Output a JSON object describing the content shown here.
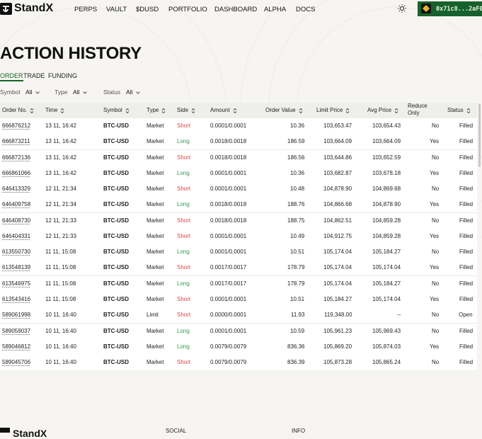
{
  "header": {
    "logo": "StandX",
    "nav": [
      "PERPS",
      "VAULT",
      "$DUSD",
      "PORTFOLIO",
      "DASHBOARD",
      "ALPHA",
      "DOCS"
    ],
    "wallet": "0x71c8...2aF0"
  },
  "page": {
    "title": "ACTION HISTORY",
    "tabs": [
      "ORDER",
      "TRADE",
      "FUNDING"
    ],
    "filters": [
      {
        "label": "Symbol",
        "value": "All"
      },
      {
        "label": "Type",
        "value": "All"
      },
      {
        "label": "Status",
        "value": "All"
      }
    ]
  },
  "table": {
    "columns": [
      "Order No.",
      "Time",
      "Symbol",
      "Type",
      "Side",
      "Amount",
      "Order Value",
      "Limit Price",
      "Avg Price",
      "Reduce Only",
      "Status"
    ],
    "side_colors": {
      "Short": "#e2453c",
      "Long": "#2f9d4e"
    },
    "rows": [
      [
        "666876212",
        "13 11, 16:42",
        "BTC-USD",
        "Market",
        "Short",
        "0.0001/0.0001",
        "10.36",
        "103,653.47",
        "103,654.43",
        "No",
        "Filled"
      ],
      [
        "666873211",
        "13 11, 16:42",
        "BTC-USD",
        "Market",
        "Long",
        "0.0018/0.0018",
        "186.59",
        "103,664.09",
        "103,664.09",
        "Yes",
        "Filled"
      ],
      [
        "666872136",
        "13 11, 16:42",
        "BTC-USD",
        "Market",
        "Short",
        "0.0018/0.0018",
        "186.56",
        "103,644.86",
        "103,652.59",
        "No",
        "Filled"
      ],
      [
        "666861066",
        "13 11, 16:42",
        "BTC-USD",
        "Market",
        "Long",
        "0.0001/0.0001",
        "10.36",
        "103,682.87",
        "103,678.18",
        "Yes",
        "Filled"
      ],
      [
        "646413329",
        "12 11, 21:34",
        "BTC-USD",
        "Market",
        "Short",
        "0.0001/0.0001",
        "10.48",
        "104,878.90",
        "104,869.68",
        "No",
        "Filled"
      ],
      [
        "646409758",
        "12 11, 21:34",
        "BTC-USD",
        "Market",
        "Long",
        "0.0018/0.0018",
        "188.76",
        "104,866.68",
        "104,878.90",
        "Yes",
        "Filled"
      ],
      [
        "646408730",
        "12 11, 21:33",
        "BTC-USD",
        "Market",
        "Short",
        "0.0018/0.0018",
        "188.75",
        "104,862.51",
        "104,859.28",
        "No",
        "Filled"
      ],
      [
        "646404331",
        "12 11, 21:33",
        "BTC-USD",
        "Market",
        "Short",
        "0.0001/0.0001",
        "10.49",
        "104,912.75",
        "104,859.28",
        "Yes",
        "Filled"
      ],
      [
        "613550730",
        "11 11, 15:08",
        "BTC-USD",
        "Market",
        "Long",
        "0.0001/0.0001",
        "10.51",
        "105,174.04",
        "105,184.27",
        "No",
        "Filled"
      ],
      [
        "613548139",
        "11 11, 15:08",
        "BTC-USD",
        "Market",
        "Short",
        "0.0017/0.0017",
        "178.79",
        "105,174.04",
        "105,174.04",
        "Yes",
        "Filled"
      ],
      [
        "613546975",
        "11 11, 15:08",
        "BTC-USD",
        "Market",
        "Long",
        "0.0017/0.0017",
        "178.79",
        "105,174.04",
        "105,184.27",
        "No",
        "Filled"
      ],
      [
        "613543416",
        "11 11, 15:08",
        "BTC-USD",
        "Market",
        "Short",
        "0.0001/0.0001",
        "10.51",
        "105,184.27",
        "105,174.04",
        "Yes",
        "Filled"
      ],
      [
        "589061998",
        "10 11, 16:40",
        "BTC-USD",
        "Limit",
        "Short",
        "0.0000/0.0001",
        "11.93",
        "119,348.00",
        "--",
        "No",
        "Open"
      ],
      [
        "589059037",
        "10 11, 16:40",
        "BTC-USD",
        "Market",
        "Long",
        "0.0001/0.0001",
        "10.59",
        "105,961.23",
        "105,969.43",
        "No",
        "Filled"
      ],
      [
        "589046812",
        "10 11, 16:40",
        "BTC-USD",
        "Market",
        "Long",
        "0.0079/0.0079",
        "836.36",
        "105,869.20",
        "105,874.03",
        "Yes",
        "Filled"
      ],
      [
        "589045706",
        "10 11, 16:40",
        "BTC-USD",
        "Market",
        "Short",
        "0.0079/0.0079",
        "836.39",
        "105,873.28",
        "105,865.24",
        "No",
        "Filled"
      ]
    ]
  },
  "footer": {
    "logo": "StandX",
    "headings": [
      "SOCIAL",
      "INFO"
    ]
  }
}
